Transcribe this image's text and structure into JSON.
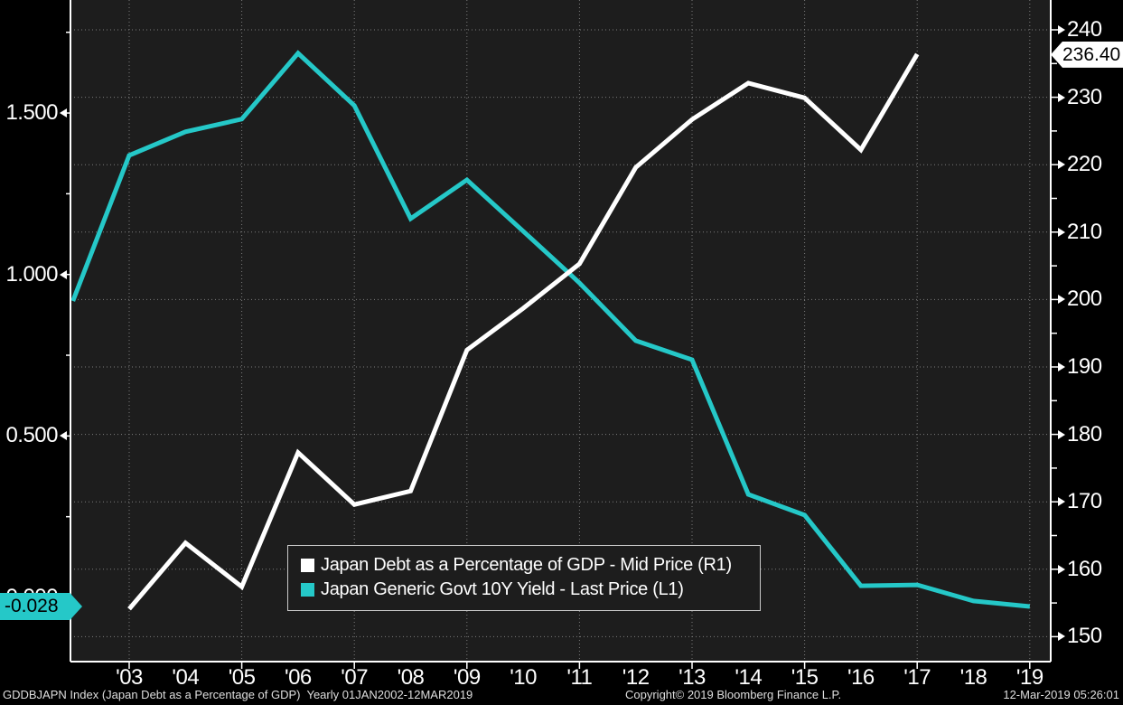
{
  "chart_data": {
    "type": "line",
    "title": "",
    "x_axis": {
      "labels": [
        "'03",
        "'04",
        "'05",
        "'06",
        "'07",
        "'08",
        "'09",
        "'10",
        "'11",
        "'12",
        "'13",
        "'14",
        "'15",
        "'16",
        "'17",
        "'18",
        "'19"
      ],
      "label_years": [
        2003,
        2004,
        2005,
        2006,
        2007,
        2008,
        2009,
        2010,
        2011,
        2012,
        2013,
        2014,
        2015,
        2016,
        2017,
        2018,
        2019
      ],
      "gridline_years": [
        2003,
        2005,
        2007,
        2009,
        2011,
        2013,
        2015,
        2017,
        2019
      ],
      "range": "01JAN2002-12MAR2019",
      "frequency": "Yearly"
    },
    "left_axis": {
      "labels": [
        "1.500",
        "1.000",
        "0.500",
        "0.000"
      ],
      "label_values": [
        1.5,
        1.0,
        0.5,
        0.0
      ],
      "minor_tick_values": [
        1.75,
        1.25,
        0.75,
        0.25
      ],
      "current_value_tag": "-0.028",
      "series_ref": "L1"
    },
    "right_axis": {
      "labels": [
        "240",
        "230",
        "220",
        "210",
        "200",
        "190",
        "180",
        "170",
        "160",
        "150"
      ],
      "label_values": [
        240,
        230,
        220,
        210,
        200,
        190,
        180,
        170,
        160,
        150
      ],
      "minor_tick_values": [
        235,
        225,
        215,
        205,
        195,
        185,
        175,
        165,
        155
      ],
      "gridline_values": [
        240,
        230,
        220,
        210,
        200,
        190,
        180,
        170,
        160,
        150
      ],
      "current_value_tag": "236.40",
      "series_ref": "R1"
    },
    "series": [
      {
        "name": "Japan Debt as a Percentage of GDP - Mid Price (R1)",
        "axis": "right",
        "color": "#ffffff",
        "years": [
          2003,
          2004,
          2005,
          2006,
          2007,
          2008,
          2009,
          2010,
          2011,
          2012,
          2013,
          2014,
          2015,
          2016,
          2017
        ],
        "values": [
          154.1,
          163.9,
          157.4,
          177.3,
          169.6,
          171.6,
          192.5,
          198.7,
          205.3,
          219.6,
          226.7,
          232.1,
          229.9,
          222.2,
          236.4
        ]
      },
      {
        "name": "Japan Generic Govt 10Y Yield - Last Price (L1)",
        "axis": "left",
        "color": "#25c8c8",
        "years": [
          2002,
          2003,
          2004,
          2005,
          2006,
          2007,
          2008,
          2009,
          2010,
          2011,
          2012,
          2013,
          2014,
          2015,
          2016,
          2017,
          2018,
          2019
        ],
        "values": [
          0.918,
          1.369,
          1.442,
          1.481,
          1.685,
          1.523,
          1.173,
          1.293,
          1.134,
          0.974,
          0.795,
          0.736,
          0.319,
          0.255,
          0.036,
          0.039,
          -0.011,
          -0.028
        ]
      }
    ],
    "legend_position": "inside-bottom-left-of-center",
    "grid": "dotted"
  },
  "legend": {
    "items": [
      {
        "label": "Japan Debt as a Percentage of GDP - Mid Price (R1)",
        "color": "#ffffff"
      },
      {
        "label": "Japan Generic Govt 10Y Yield - Last Price (L1)",
        "color": "#25c8c8"
      }
    ]
  },
  "tags": {
    "left_axis_value": "-0.028",
    "right_axis_value": "236.40"
  },
  "status_bar": {
    "left": "GDDBJAPN Index (Japan Debt as a Percentage of GDP)  Yearly 01JAN2002-12MAR2019",
    "center": "Copyright© 2019 Bloomberg Finance L.P.",
    "right": "12-Mar-2019 05:26:01"
  },
  "colors": {
    "background": "#000000",
    "plot_background": "#1d1d1d",
    "grid": "#7d7d7d",
    "axis": "#ffffff",
    "debt_series": "#ffffff",
    "yield_series": "#25c8c8",
    "tag_left_bg": "#25c8c8",
    "tag_right_bg": "#ffffff"
  }
}
